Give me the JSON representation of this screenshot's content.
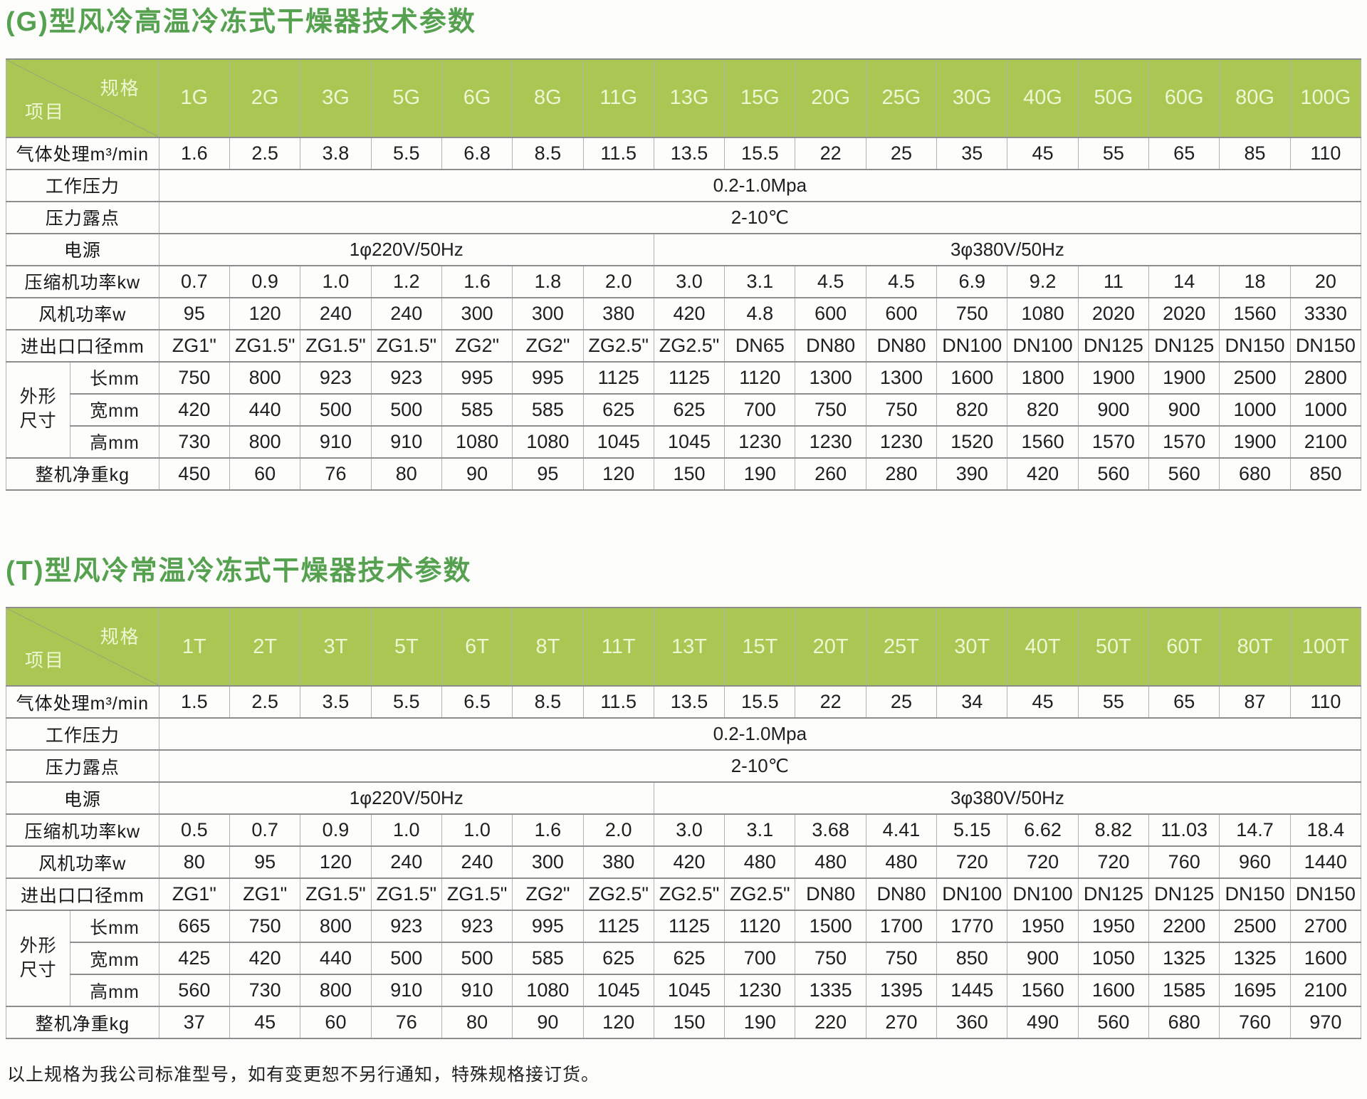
{
  "colors": {
    "title_green": "#55a14f",
    "header_green": "#a9c752",
    "header_text": "#eef6d3",
    "border_horizontal": "#8d8d8d",
    "border_vertical": "#b2b2b2",
    "page_background": "#fcfcfa",
    "body_text": "#1f1f1f"
  },
  "corner": {
    "spec_label": "规格",
    "item_label": "项目"
  },
  "note": "以上规格为我公司标准型号，如有变更恕不另行通知，特殊规格接订货。",
  "tables": [
    {
      "title": "(G)型风冷高温冷冻式干燥器技术参数",
      "models": [
        "1G",
        "2G",
        "3G",
        "5G",
        "6G",
        "8G",
        "11G",
        "13G",
        "15G",
        "20G",
        "25G",
        "30G",
        "40G",
        "50G",
        "60G",
        "80G",
        "100G"
      ],
      "rows": [
        {
          "kind": "values",
          "label": "气体处理m³/min",
          "values": [
            "1.6",
            "2.5",
            "3.8",
            "5.5",
            "6.8",
            "8.5",
            "11.5",
            "13.5",
            "15.5",
            "22",
            "25",
            "35",
            "45",
            "55",
            "65",
            "85",
            "110"
          ]
        },
        {
          "kind": "span",
          "label": "工作压力",
          "value": "0.2-1.0Mpa"
        },
        {
          "kind": "span",
          "label": "压力露点",
          "value": "2-10℃"
        },
        {
          "kind": "split",
          "label": "电源",
          "left": "1φ220V/50Hz",
          "left_cols": 7,
          "right": "3φ380V/50Hz",
          "right_cols": 10
        },
        {
          "kind": "values",
          "label": "压缩机功率kw",
          "values": [
            "0.7",
            "0.9",
            "1.0",
            "1.2",
            "1.6",
            "1.8",
            "2.0",
            "3.0",
            "3.1",
            "4.5",
            "4.5",
            "6.9",
            "9.2",
            "11",
            "14",
            "18",
            "20"
          ]
        },
        {
          "kind": "values",
          "label": "风机功率w",
          "values": [
            "95",
            "120",
            "240",
            "240",
            "300",
            "300",
            "380",
            "420",
            "4.8",
            "600",
            "600",
            "750",
            "1080",
            "2020",
            "2020",
            "1560",
            "3330"
          ]
        },
        {
          "kind": "values",
          "label": "进出口口径mm",
          "values": [
            "ZG1\"",
            "ZG1.5\"",
            "ZG1.5\"",
            "ZG1.5\"",
            "ZG2\"",
            "ZG2\"",
            "ZG2.5\"",
            "ZG2.5\"",
            "DN65",
            "DN80",
            "DN80",
            "DN100",
            "DN100",
            "DN125",
            "DN125",
            "DN150",
            "DN150"
          ]
        },
        {
          "kind": "group",
          "label": "外形尺寸",
          "sub": [
            {
              "label": "长mm",
              "values": [
                "750",
                "800",
                "923",
                "923",
                "995",
                "995",
                "1125",
                "1125",
                "1120",
                "1300",
                "1300",
                "1600",
                "1800",
                "1900",
                "1900",
                "2500",
                "2800"
              ]
            },
            {
              "label": "宽mm",
              "values": [
                "420",
                "440",
                "500",
                "500",
                "585",
                "585",
                "625",
                "625",
                "700",
                "750",
                "750",
                "820",
                "820",
                "900",
                "900",
                "1000",
                "1000"
              ]
            },
            {
              "label": "高mm",
              "values": [
                "730",
                "800",
                "910",
                "910",
                "1080",
                "1080",
                "1045",
                "1045",
                "1230",
                "1230",
                "1230",
                "1520",
                "1560",
                "1570",
                "1570",
                "1900",
                "2100"
              ]
            }
          ]
        },
        {
          "kind": "values",
          "label": "整机净重kg",
          "values": [
            "450",
            "60",
            "76",
            "80",
            "90",
            "95",
            "120",
            "150",
            "190",
            "260",
            "280",
            "390",
            "420",
            "560",
            "560",
            "680",
            "850"
          ]
        }
      ]
    },
    {
      "title": "(T)型风冷常温冷冻式干燥器技术参数",
      "models": [
        "1T",
        "2T",
        "3T",
        "5T",
        "6T",
        "8T",
        "11T",
        "13T",
        "15T",
        "20T",
        "25T",
        "30T",
        "40T",
        "50T",
        "60T",
        "80T",
        "100T"
      ],
      "rows": [
        {
          "kind": "values",
          "label": "气体处理m³/min",
          "values": [
            "1.5",
            "2.5",
            "3.5",
            "5.5",
            "6.5",
            "8.5",
            "11.5",
            "13.5",
            "15.5",
            "22",
            "25",
            "34",
            "45",
            "55",
            "65",
            "87",
            "110"
          ]
        },
        {
          "kind": "span",
          "label": "工作压力",
          "value": "0.2-1.0Mpa"
        },
        {
          "kind": "span",
          "label": "压力露点",
          "value": "2-10℃"
        },
        {
          "kind": "split",
          "label": "电源",
          "left": "1φ220V/50Hz",
          "left_cols": 7,
          "right": "3φ380V/50Hz",
          "right_cols": 10
        },
        {
          "kind": "values",
          "label": "压缩机功率kw",
          "values": [
            "0.5",
            "0.7",
            "0.9",
            "1.0",
            "1.0",
            "1.6",
            "2.0",
            "3.0",
            "3.1",
            "3.68",
            "4.41",
            "5.15",
            "6.62",
            "8.82",
            "11.03",
            "14.7",
            "18.4"
          ]
        },
        {
          "kind": "values",
          "label": "风机功率w",
          "values": [
            "80",
            "95",
            "120",
            "240",
            "240",
            "300",
            "380",
            "420",
            "480",
            "480",
            "480",
            "720",
            "720",
            "720",
            "760",
            "960",
            "1440"
          ]
        },
        {
          "kind": "values",
          "label": "进出口口径mm",
          "values": [
            "ZG1\"",
            "ZG1\"",
            "ZG1.5\"",
            "ZG1.5\"",
            "ZG1.5\"",
            "ZG2\"",
            "ZG2.5\"",
            "ZG2.5\"",
            "ZG2.5\"",
            "DN80",
            "DN80",
            "DN100",
            "DN100",
            "DN125",
            "DN125",
            "DN150",
            "DN150"
          ]
        },
        {
          "kind": "group",
          "label": "外形尺寸",
          "sub": [
            {
              "label": "长mm",
              "values": [
                "665",
                "750",
                "800",
                "923",
                "923",
                "995",
                "1125",
                "1125",
                "1120",
                "1500",
                "1700",
                "1770",
                "1950",
                "1950",
                "2200",
                "2500",
                "2700"
              ]
            },
            {
              "label": "宽mm",
              "values": [
                "425",
                "420",
                "440",
                "500",
                "500",
                "585",
                "625",
                "625",
                "700",
                "750",
                "750",
                "850",
                "900",
                "1050",
                "1325",
                "1325",
                "1600"
              ]
            },
            {
              "label": "高mm",
              "values": [
                "560",
                "730",
                "800",
                "910",
                "910",
                "1080",
                "1045",
                "1045",
                "1230",
                "1335",
                "1395",
                "1445",
                "1560",
                "1600",
                "1585",
                "1695",
                "2100"
              ]
            }
          ]
        },
        {
          "kind": "values",
          "label": "整机净重kg",
          "values": [
            "37",
            "45",
            "60",
            "76",
            "80",
            "90",
            "120",
            "150",
            "190",
            "220",
            "270",
            "360",
            "490",
            "560",
            "680",
            "760",
            "970"
          ]
        }
      ]
    }
  ]
}
